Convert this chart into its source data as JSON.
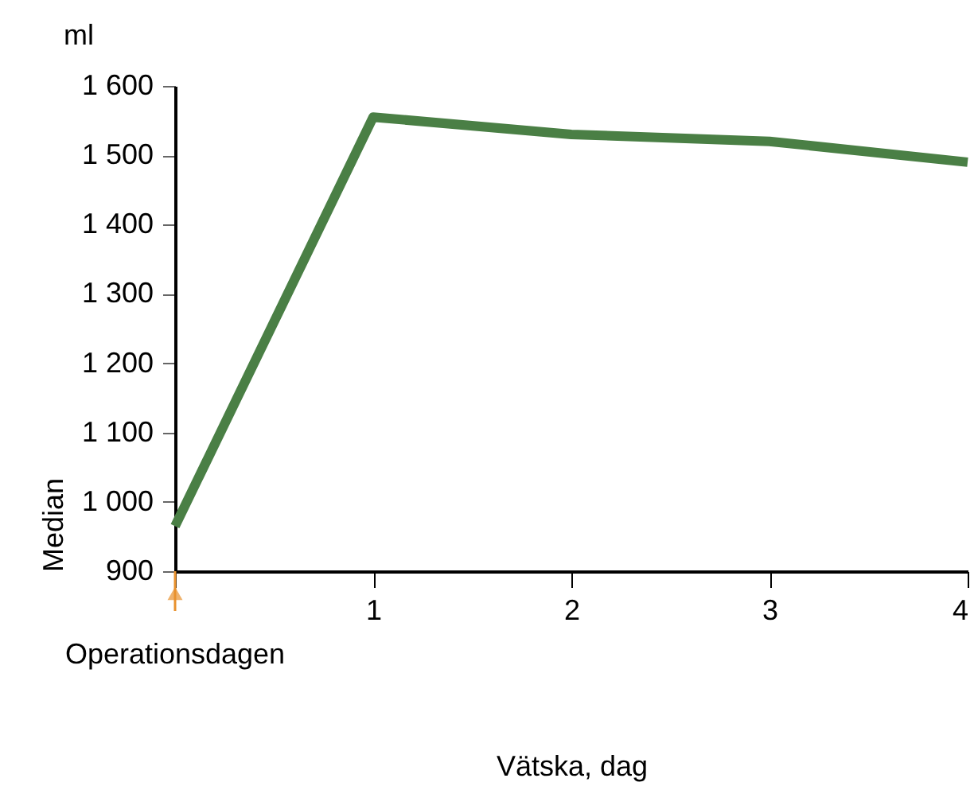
{
  "chart_data": {
    "type": "line",
    "x": [
      0,
      1,
      2,
      3,
      4
    ],
    "series": [
      {
        "color": "#4a7f45",
        "values": [
          965,
          1555,
          1530,
          1520,
          1490
        ]
      }
    ],
    "xlim": [
      0,
      4
    ],
    "ylim": [
      900,
      1600
    ],
    "xticks": [
      {
        "value": 0,
        "label": null
      },
      1,
      2,
      3,
      4
    ],
    "yticks": [
      {
        "value": 900,
        "label": "900"
      },
      {
        "value": 1000,
        "label": "1 000"
      },
      {
        "value": 1100,
        "label": "1 100"
      },
      {
        "value": 1200,
        "label": "1 200"
      },
      {
        "value": 1300,
        "label": "1 300"
      },
      {
        "value": 1400,
        "label": "1 400"
      },
      {
        "value": 1500,
        "label": "1 500"
      },
      {
        "value": 1600,
        "label": "1 600"
      }
    ],
    "xlabel": "Vätska, dag",
    "ylabel": "Median",
    "annotations": [
      "ml",
      "Operationsdagen"
    ],
    "grid": false,
    "marker": "none",
    "line_style": "solid"
  }
}
